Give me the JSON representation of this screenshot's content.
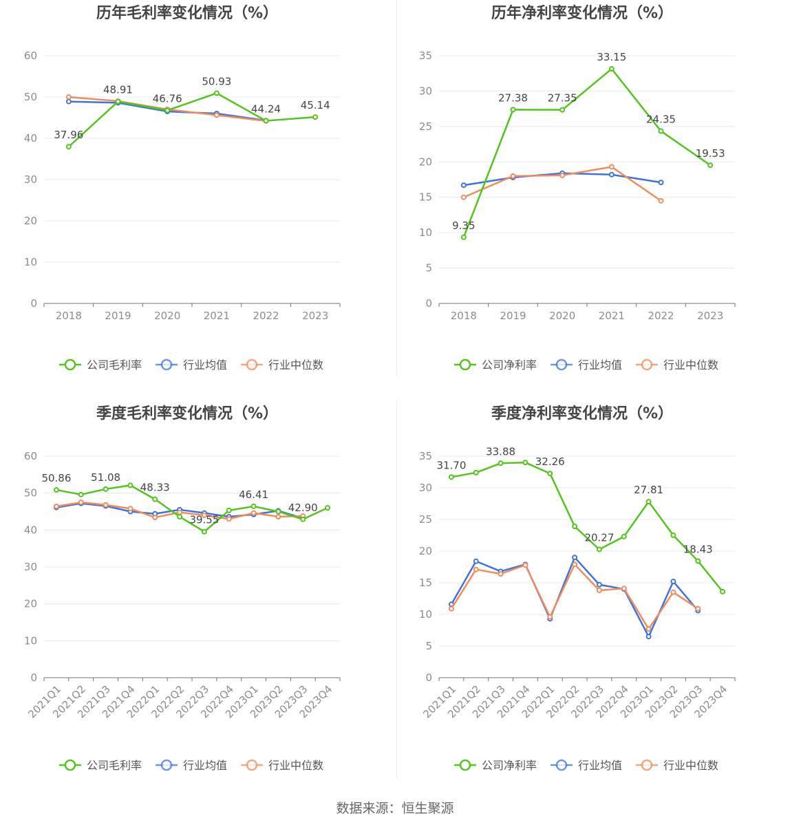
{
  "source": "数据来源：恒生聚源",
  "chart_data": [
    {
      "id": "annual-gross",
      "type": "line",
      "title": "历年毛利率变化情况（%）",
      "categories": [
        "2018",
        "2019",
        "2020",
        "2021",
        "2022",
        "2023"
      ],
      "ylim": [
        0,
        60
      ],
      "yticks": [
        0,
        10,
        20,
        30,
        40,
        50,
        60
      ],
      "grid": true,
      "legend_position": "bottom",
      "series": [
        {
          "name": "公司毛利率",
          "color": "#52c41a",
          "values": [
            37.96,
            48.91,
            46.76,
            50.93,
            44.24,
            45.14
          ],
          "labels": [
            "37.96",
            "48.91",
            "46.76",
            "50.93",
            "44.24",
            "45.14"
          ]
        },
        {
          "name": "行业均值",
          "color": "#3f72de",
          "values": [
            48.9,
            48.6,
            46.5,
            46.0,
            44.3,
            null
          ]
        },
        {
          "name": "行业中位数",
          "color": "#f08c5a",
          "values": [
            50.0,
            49.0,
            47.0,
            45.6,
            44.2,
            null
          ]
        }
      ]
    },
    {
      "id": "annual-net",
      "type": "line",
      "title": "历年净利率变化情况（%）",
      "categories": [
        "2018",
        "2019",
        "2020",
        "2021",
        "2022",
        "2023"
      ],
      "ylim": [
        0,
        35
      ],
      "yticks": [
        0,
        5,
        10,
        15,
        20,
        25,
        30,
        35
      ],
      "grid": true,
      "legend_position": "bottom",
      "series": [
        {
          "name": "公司净利率",
          "color": "#52c41a",
          "values": [
            9.35,
            27.38,
            27.35,
            33.15,
            24.35,
            19.53
          ],
          "labels": [
            "9.35",
            "27.38",
            "27.35",
            "33.15",
            "24.35",
            "19.53"
          ]
        },
        {
          "name": "行业均值",
          "color": "#3f72de",
          "values": [
            16.7,
            17.8,
            18.4,
            18.2,
            17.1,
            null
          ]
        },
        {
          "name": "行业中位数",
          "color": "#f08c5a",
          "values": [
            15.0,
            18.0,
            18.1,
            19.3,
            14.5,
            null
          ]
        }
      ]
    },
    {
      "id": "quarter-gross",
      "type": "line",
      "title": "季度毛利率变化情况（%）",
      "categories": [
        "2021Q1",
        "2021Q2",
        "2021Q3",
        "2021Q4",
        "2022Q1",
        "2022Q2",
        "2022Q3",
        "2022Q4",
        "2023Q1",
        "2023Q2",
        "2023Q3",
        "2023Q4"
      ],
      "ylim": [
        0,
        60
      ],
      "yticks": [
        0,
        10,
        20,
        30,
        40,
        50,
        60
      ],
      "grid": true,
      "legend_position": "bottom",
      "series": [
        {
          "name": "公司毛利率",
          "color": "#52c41a",
          "values": [
            50.86,
            49.6,
            51.08,
            52.1,
            48.33,
            43.6,
            39.55,
            45.3,
            46.41,
            45.0,
            42.9,
            46.0
          ],
          "labels": [
            "50.86",
            "",
            "51.08",
            "",
            "48.33",
            "",
            "39.55",
            "",
            "46.41",
            "",
            "42.90",
            ""
          ]
        },
        {
          "name": "行业均值",
          "color": "#3f72de",
          "values": [
            46.1,
            47.2,
            46.5,
            45.0,
            44.4,
            45.5,
            44.6,
            43.6,
            44.2,
            45.2,
            43.2,
            null
          ]
        },
        {
          "name": "行业中位数",
          "color": "#f08c5a",
          "values": [
            46.4,
            47.5,
            46.8,
            45.8,
            43.4,
            44.8,
            44.0,
            43.0,
            44.6,
            43.6,
            43.8,
            null
          ]
        }
      ]
    },
    {
      "id": "quarter-net",
      "type": "line",
      "title": "季度净利率变化情况（%）",
      "categories": [
        "2021Q1",
        "2021Q2",
        "2021Q3",
        "2021Q4",
        "2022Q1",
        "2022Q2",
        "2022Q3",
        "2022Q4",
        "2023Q1",
        "2023Q2",
        "2023Q3",
        "2023Q4"
      ],
      "ylim": [
        0,
        35
      ],
      "yticks": [
        0,
        5,
        10,
        15,
        20,
        25,
        30,
        35
      ],
      "grid": true,
      "legend_position": "bottom",
      "series": [
        {
          "name": "公司净利率",
          "color": "#52c41a",
          "values": [
            31.7,
            32.4,
            33.88,
            34.0,
            32.26,
            23.9,
            20.27,
            22.3,
            27.81,
            22.5,
            18.43,
            13.6
          ],
          "labels": [
            "31.70",
            "",
            "33.88",
            "",
            "32.26",
            "",
            "20.27",
            "",
            "27.81",
            "",
            "18.43",
            ""
          ]
        },
        {
          "name": "行业均值",
          "color": "#3f72de",
          "values": [
            11.6,
            18.4,
            16.8,
            17.9,
            9.3,
            19.0,
            14.7,
            14.0,
            6.5,
            15.2,
            10.6,
            null
          ]
        },
        {
          "name": "行业中位数",
          "color": "#f08c5a",
          "values": [
            10.9,
            17.1,
            16.4,
            17.8,
            9.6,
            17.9,
            13.8,
            14.1,
            7.7,
            13.5,
            10.9,
            null
          ]
        }
      ]
    }
  ]
}
